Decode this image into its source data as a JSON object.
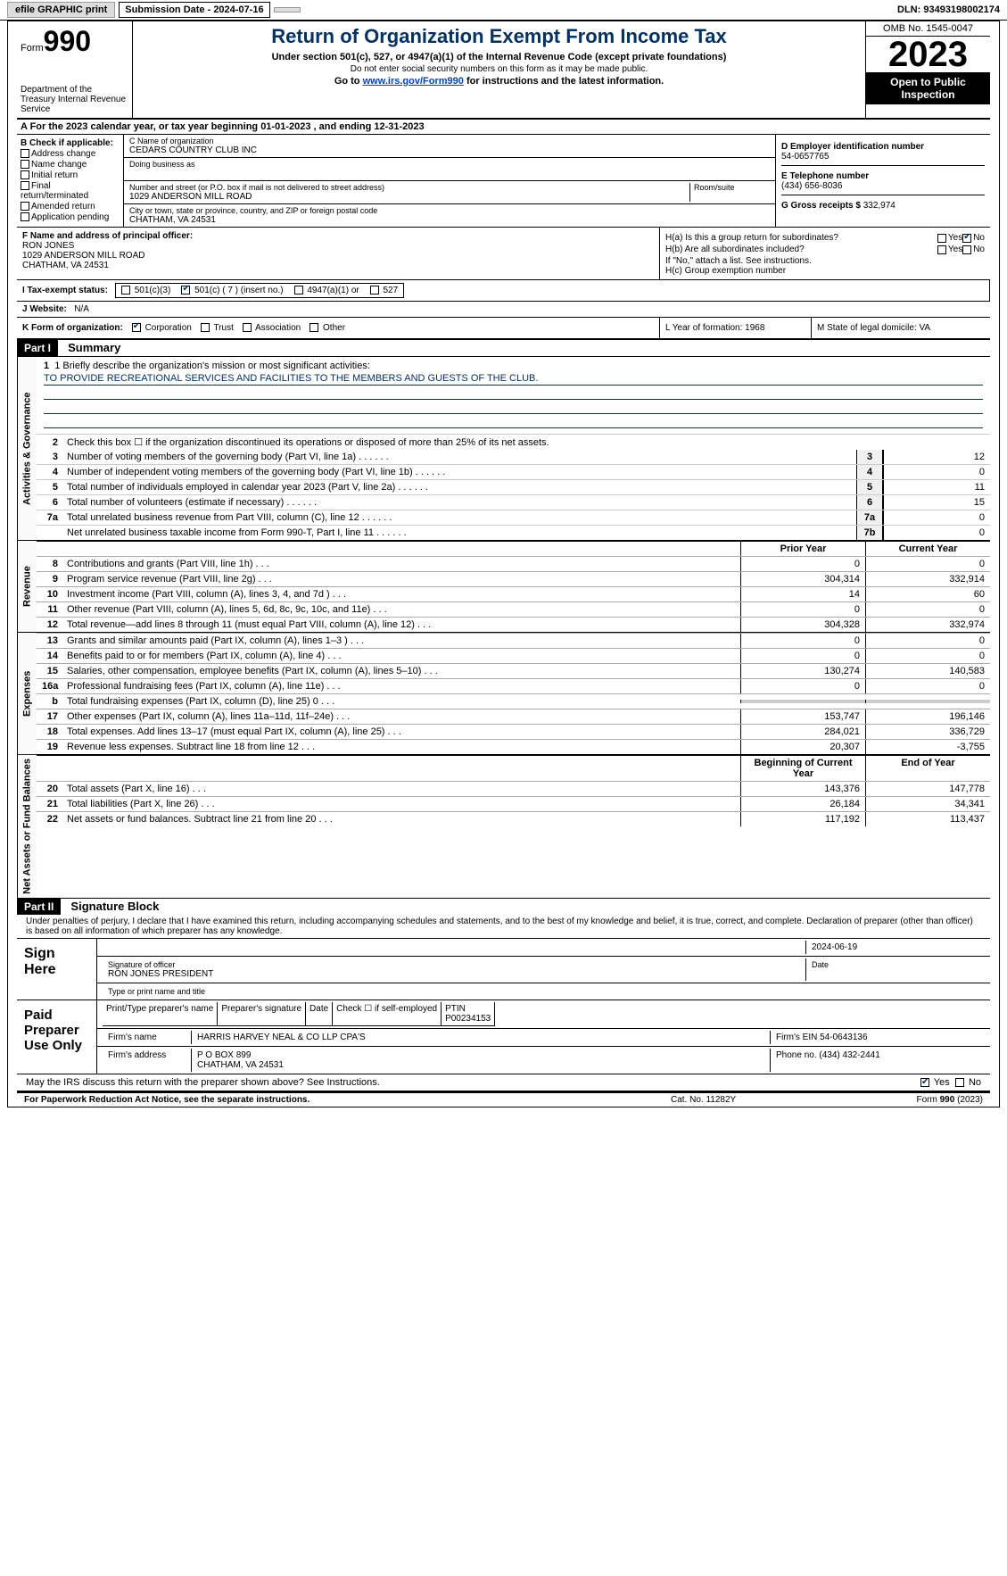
{
  "top": {
    "efile": "efile GRAPHIC print",
    "subdate_lbl": "Submission Date - 2024-07-16",
    "dln": "DLN: 93493198002174"
  },
  "header": {
    "form_prefix": "Form",
    "form_num": "990",
    "dept": "Department of the Treasury\nInternal Revenue Service",
    "title": "Return of Organization Exempt From Income Tax",
    "sub1": "Under section 501(c), 527, or 4947(a)(1) of the Internal Revenue Code (except private foundations)",
    "sub2": "Do not enter social security numbers on this form as it may be made public.",
    "sub3_pre": "Go to ",
    "sub3_link": "www.irs.gov/Form990",
    "sub3_post": " for instructions and the latest information.",
    "omb": "OMB No. 1545-0047",
    "year": "2023",
    "open": "Open to Public Inspection"
  },
  "row_a": "A  For the 2023 calendar year, or tax year beginning 01-01-2023   , and ending 12-31-2023",
  "col_b": {
    "label": "B Check if applicable:",
    "items": [
      "Address change",
      "Name change",
      "Initial return",
      "Final return/terminated",
      "Amended return",
      "Application pending"
    ]
  },
  "col_c": {
    "name_lbl": "C Name of organization",
    "name": "CEDARS COUNTRY CLUB INC",
    "dba_lbl": "Doing business as",
    "addr_lbl": "Number and street (or P.O. box if mail is not delivered to street address)",
    "room_lbl": "Room/suite",
    "addr": "1029 ANDERSON MILL ROAD",
    "city_lbl": "City or town, state or province, country, and ZIP or foreign postal code",
    "city": "CHATHAM, VA  24531"
  },
  "col_d": {
    "ein_lbl": "D Employer identification number",
    "ein": "54-0657765",
    "phone_lbl": "E Telephone number",
    "phone": "(434) 656-8036",
    "gross_lbl": "G Gross receipts $",
    "gross": "332,974"
  },
  "col_f": {
    "lbl": "F  Name and address of principal officer:",
    "name": "RON JONES",
    "addr1": "1029 ANDERSON MILL ROAD",
    "addr2": "CHATHAM, VA  24531"
  },
  "col_h": {
    "ha": "H(a)  Is this a group return for subordinates?",
    "hb": "H(b)  Are all subordinates included?",
    "hb_note": "If \"No,\" attach a list. See instructions.",
    "hc": "H(c)  Group exemption number",
    "yes": "Yes",
    "no": "No"
  },
  "row_i": {
    "lbl": "I  Tax-exempt status:",
    "c3": "501(c)(3)",
    "c": "501(c) ( 7 ) (insert no.)",
    "a1": "4947(a)(1) or",
    "s527": "527"
  },
  "row_j": {
    "lbl": "J  Website:",
    "val": "N/A"
  },
  "row_k": {
    "lbl": "K Form of organization:",
    "corp": "Corporation",
    "trust": "Trust",
    "assoc": "Association",
    "other": "Other"
  },
  "row_l": "L Year of formation: 1968",
  "row_m": "M State of legal domicile: VA",
  "part1": {
    "hdr": "Part I",
    "title": "Summary"
  },
  "mission": {
    "lbl": "1  Briefly describe the organization's mission or most significant activities:",
    "text": "TO PROVIDE RECREATIONAL SERVICES AND FACILITIES TO THE MEMBERS AND GUESTS OF THE CLUB."
  },
  "gov_lines": {
    "l2": "Check this box ☐ if the organization discontinued its operations or disposed of more than 25% of its net assets.",
    "items": [
      {
        "n": "3",
        "d": "Number of voting members of the governing body (Part VI, line 1a)",
        "b": "3",
        "v": "12"
      },
      {
        "n": "4",
        "d": "Number of independent voting members of the governing body (Part VI, line 1b)",
        "b": "4",
        "v": "0"
      },
      {
        "n": "5",
        "d": "Total number of individuals employed in calendar year 2023 (Part V, line 2a)",
        "b": "5",
        "v": "11"
      },
      {
        "n": "6",
        "d": "Total number of volunteers (estimate if necessary)",
        "b": "6",
        "v": "15"
      },
      {
        "n": "7a",
        "d": "Total unrelated business revenue from Part VIII, column (C), line 12",
        "b": "7a",
        "v": "0"
      },
      {
        "n": "",
        "d": "Net unrelated business taxable income from Form 990-T, Part I, line 11",
        "b": "7b",
        "v": "0"
      }
    ]
  },
  "fin_hdr": {
    "prior": "Prior Year",
    "current": "Current Year"
  },
  "revenue": [
    {
      "n": "8",
      "d": "Contributions and grants (Part VIII, line 1h)",
      "p": "0",
      "c": "0"
    },
    {
      "n": "9",
      "d": "Program service revenue (Part VIII, line 2g)",
      "p": "304,314",
      "c": "332,914"
    },
    {
      "n": "10",
      "d": "Investment income (Part VIII, column (A), lines 3, 4, and 7d )",
      "p": "14",
      "c": "60"
    },
    {
      "n": "11",
      "d": "Other revenue (Part VIII, column (A), lines 5, 6d, 8c, 9c, 10c, and 11e)",
      "p": "0",
      "c": "0"
    },
    {
      "n": "12",
      "d": "Total revenue—add lines 8 through 11 (must equal Part VIII, column (A), line 12)",
      "p": "304,328",
      "c": "332,974"
    }
  ],
  "expenses": [
    {
      "n": "13",
      "d": "Grants and similar amounts paid (Part IX, column (A), lines 1–3 )",
      "p": "0",
      "c": "0"
    },
    {
      "n": "14",
      "d": "Benefits paid to or for members (Part IX, column (A), line 4)",
      "p": "0",
      "c": "0"
    },
    {
      "n": "15",
      "d": "Salaries, other compensation, employee benefits (Part IX, column (A), lines 5–10)",
      "p": "130,274",
      "c": "140,583"
    },
    {
      "n": "16a",
      "d": "Professional fundraising fees (Part IX, column (A), line 11e)",
      "p": "0",
      "c": "0"
    },
    {
      "n": "b",
      "d": "Total fundraising expenses (Part IX, column (D), line 25) 0",
      "p": "",
      "c": "",
      "shaded": true
    },
    {
      "n": "17",
      "d": "Other expenses (Part IX, column (A), lines 11a–11d, 11f–24e)",
      "p": "153,747",
      "c": "196,146"
    },
    {
      "n": "18",
      "d": "Total expenses. Add lines 13–17 (must equal Part IX, column (A), line 25)",
      "p": "284,021",
      "c": "336,729"
    },
    {
      "n": "19",
      "d": "Revenue less expenses. Subtract line 18 from line 12",
      "p": "20,307",
      "c": "-3,755"
    }
  ],
  "net_hdr": {
    "begin": "Beginning of Current Year",
    "end": "End of Year"
  },
  "net": [
    {
      "n": "20",
      "d": "Total assets (Part X, line 16)",
      "p": "143,376",
      "c": "147,778"
    },
    {
      "n": "21",
      "d": "Total liabilities (Part X, line 26)",
      "p": "26,184",
      "c": "34,341"
    },
    {
      "n": "22",
      "d": "Net assets or fund balances. Subtract line 21 from line 20",
      "p": "117,192",
      "c": "113,437"
    }
  ],
  "side_labels": {
    "gov": "Activities & Governance",
    "rev": "Revenue",
    "exp": "Expenses",
    "net": "Net Assets or Fund Balances"
  },
  "part2": {
    "hdr": "Part II",
    "title": "Signature Block"
  },
  "penalties": "Under penalties of perjury, I declare that I have examined this return, including accompanying schedules and statements, and to the best of my knowledge and belief, it is true, correct, and complete. Declaration of preparer (other than officer) is based on all information of which preparer has any knowledge.",
  "sign": {
    "here": "Sign Here",
    "sig_lbl": "Signature of officer",
    "officer": "RON JONES PRESIDENT",
    "date_lbl": "Date",
    "date": "2024-06-19",
    "type_lbl": "Type or print name and title"
  },
  "paid": {
    "title": "Paid Preparer Use Only",
    "pname_lbl": "Print/Type preparer's name",
    "psig_lbl": "Preparer's signature",
    "pdate_lbl": "Date",
    "self_lbl": "Check ☐ if self-employed",
    "ptin_lbl": "PTIN",
    "ptin": "P00234153",
    "firm_lbl": "Firm's name",
    "firm": "HARRIS HARVEY NEAL & CO LLP CPA'S",
    "fein_lbl": "Firm's EIN",
    "fein": "54-0643136",
    "faddr_lbl": "Firm's address",
    "faddr1": "P O BOX 899",
    "faddr2": "CHATHAM, VA  24531",
    "fphone_lbl": "Phone no.",
    "fphone": "(434) 432-2441"
  },
  "irs_discuss": {
    "q": "May the IRS discuss this return with the preparer shown above? See Instructions.",
    "yes": "Yes",
    "no": "No"
  },
  "footer": {
    "left": "For Paperwork Reduction Act Notice, see the separate instructions.",
    "mid": "Cat. No. 11282Y",
    "right_pre": "Form ",
    "right_form": "990",
    "right_post": " (2023)"
  }
}
